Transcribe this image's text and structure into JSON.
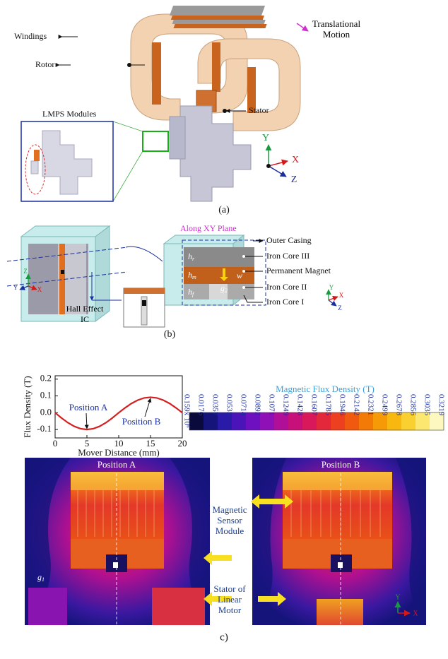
{
  "panel_a": {
    "labels": {
      "windings": "Windings",
      "rotor": "Rotor",
      "lmps": "LMPS Modules",
      "motion": "Translational Motion",
      "stator": "Stator"
    },
    "axes": {
      "y": "Y",
      "x": "X",
      "z": "Z"
    },
    "caption": "(a)"
  },
  "panel_b": {
    "plane": "Along XY Plane",
    "labels": [
      "Outer Casing",
      "Iron Core III",
      "Permanent Magnet",
      "Iron Core II",
      "Iron Core I"
    ],
    "hall": "Hall Effect IC",
    "dims": [
      {
        "base": "h",
        "sub": "r"
      },
      {
        "base": "h",
        "sub": "m"
      },
      {
        "base": "h",
        "sub": "f"
      },
      {
        "base": "w"
      },
      {
        "base": "g",
        "sub": "2"
      }
    ],
    "axes_left": {
      "z": "Z",
      "y": "Y",
      "x": "X"
    },
    "axes_right": {
      "y": "Y",
      "x": "X",
      "z": "Z"
    },
    "caption": "(b)"
  },
  "chart_data": {
    "type": "line",
    "x_label": "Mover Distance (mm)",
    "y_label": "Flux Density (T)",
    "x": [
      0,
      1,
      2,
      3,
      4,
      5,
      6,
      7,
      8,
      9,
      10,
      11,
      12,
      13,
      14,
      15,
      16,
      17,
      18,
      19,
      20
    ],
    "series": [
      {
        "color": "#d42020",
        "values": [
          0,
          -0.031,
          -0.059,
          -0.081,
          -0.095,
          -0.1,
          -0.095,
          -0.081,
          -0.059,
          -0.031,
          0,
          0.029,
          0.055,
          0.075,
          0.088,
          0.092,
          0.088,
          0.075,
          0.055,
          0.029,
          0
        ]
      }
    ],
    "xlim": [
      0,
      20
    ],
    "ylim": [
      -0.15,
      0.22
    ],
    "xticks": [
      0,
      5,
      10,
      15,
      20
    ],
    "yticks": [
      0.2,
      0.1,
      {
        "value": 0,
        "label": "0.0"
      },
      -0.1
    ],
    "annotations": [
      "Position A",
      "Position B"
    ]
  },
  "panel_c": {
    "colorbar": {
      "title": "Magnetic Flux Density (T)",
      "tick_labels": [
        "0.159x 10⁶",
        "0.0176",
        "0.0357",
        "0.0535",
        "0.0714",
        "0.0892",
        "0.1071",
        "0.1249",
        "0.1428",
        "0.1607",
        "0.1785",
        "0.1946",
        "0.2142",
        "0.2321",
        "0.2499",
        "0.2678",
        "0.2856",
        "0.3035",
        "0.3219"
      ],
      "colors": [
        "#0a0a3c",
        "#14147a",
        "#2a1aa8",
        "#4a14b8",
        "#6e10c0",
        "#9010b8",
        "#b01098",
        "#c8107a",
        "#d8185a",
        "#e4283c",
        "#ec4020",
        "#f05a10",
        "#f47a08",
        "#f69a08",
        "#f8b810",
        "#fad030",
        "#fce870",
        "#fdf8c0"
      ]
    },
    "fields": {
      "titles": [
        "Position A",
        "Position B"
      ],
      "labels": [
        "Magnetic Sensor Module",
        "Stator of Linear Motor"
      ],
      "gap": {
        "base": "g",
        "sub": "1"
      },
      "axes": {
        "y": "Y",
        "x": "X"
      }
    },
    "caption": "c)"
  }
}
